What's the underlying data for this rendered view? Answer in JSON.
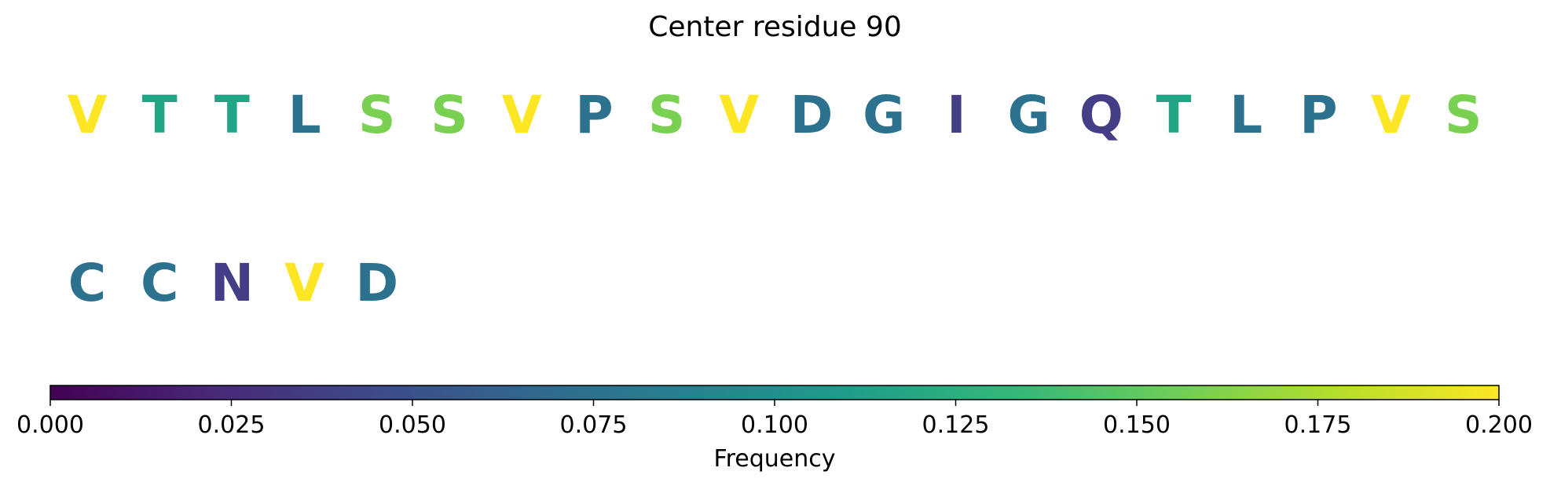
{
  "chart_data": {
    "type": "table",
    "title": "Center residue 90",
    "residues": [
      {
        "letter": "V",
        "frequency": 0.2,
        "color": "#fde725"
      },
      {
        "letter": "T",
        "frequency": 0.125,
        "color": "#21a685"
      },
      {
        "letter": "T",
        "frequency": 0.125,
        "color": "#21a685"
      },
      {
        "letter": "L",
        "frequency": 0.075,
        "color": "#2c728e"
      },
      {
        "letter": "S",
        "frequency": 0.175,
        "color": "#7ad151"
      },
      {
        "letter": "S",
        "frequency": 0.175,
        "color": "#7ad151"
      },
      {
        "letter": "V",
        "frequency": 0.2,
        "color": "#fde725"
      },
      {
        "letter": "P",
        "frequency": 0.075,
        "color": "#2c728e"
      },
      {
        "letter": "S",
        "frequency": 0.175,
        "color": "#7ad151"
      },
      {
        "letter": "V",
        "frequency": 0.2,
        "color": "#fde725"
      },
      {
        "letter": "D",
        "frequency": 0.075,
        "color": "#2c728e"
      },
      {
        "letter": "G",
        "frequency": 0.075,
        "color": "#2c728e"
      },
      {
        "letter": "I",
        "frequency": 0.05,
        "color": "#433e85"
      },
      {
        "letter": "G",
        "frequency": 0.075,
        "color": "#2c728e"
      },
      {
        "letter": "Q",
        "frequency": 0.05,
        "color": "#433e85"
      },
      {
        "letter": "T",
        "frequency": 0.125,
        "color": "#21a685"
      },
      {
        "letter": "L",
        "frequency": 0.075,
        "color": "#2c728e"
      },
      {
        "letter": "P",
        "frequency": 0.075,
        "color": "#2c728e"
      },
      {
        "letter": "V",
        "frequency": 0.2,
        "color": "#fde725"
      },
      {
        "letter": "S",
        "frequency": 0.175,
        "color": "#7ad151"
      },
      {
        "letter": "C",
        "frequency": 0.075,
        "color": "#2c728e"
      },
      {
        "letter": "C",
        "frequency": 0.075,
        "color": "#2c728e"
      },
      {
        "letter": "N",
        "frequency": 0.05,
        "color": "#433e85"
      },
      {
        "letter": "V",
        "frequency": 0.2,
        "color": "#fde725"
      },
      {
        "letter": "D",
        "frequency": 0.075,
        "color": "#2c728e"
      }
    ],
    "colorbar": {
      "label": "Frequency",
      "colormap": "viridis",
      "range": [
        0.0,
        0.2
      ],
      "ticks": [
        "0.000",
        "0.025",
        "0.050",
        "0.075",
        "0.100",
        "0.125",
        "0.150",
        "0.175",
        "0.200"
      ],
      "stops": [
        "#440154",
        "#482878",
        "#3e4989",
        "#31688e",
        "#26828e",
        "#1f9e89",
        "#35b779",
        "#6ece58",
        "#b5de2b",
        "#fde725"
      ]
    }
  }
}
